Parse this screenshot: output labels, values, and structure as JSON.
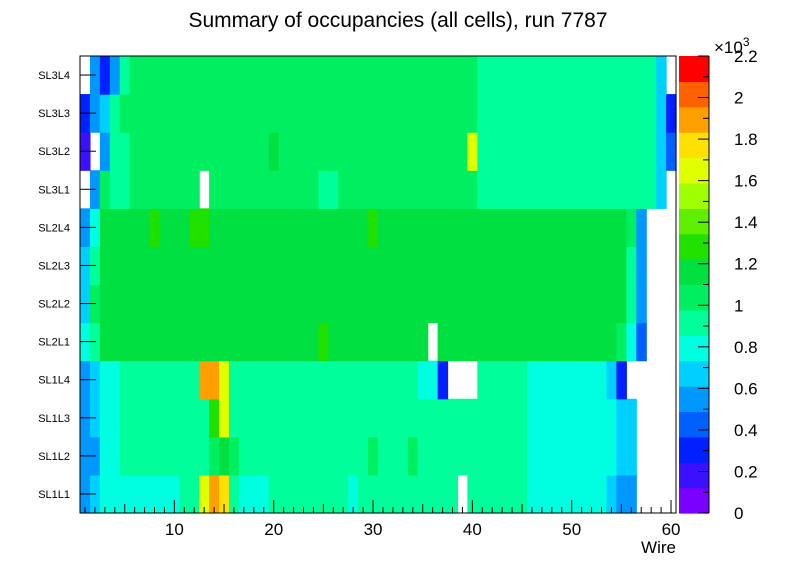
{
  "chart_data": {
    "type": "heatmap",
    "title": "Summary of occupancies (all cells),      run 7787",
    "xlabel": "Wire",
    "ylabel": "",
    "x_range": [
      0.5,
      60.5
    ],
    "x_ticks": [
      10,
      20,
      30,
      40,
      50,
      60
    ],
    "y_categories": [
      "SL1L1",
      "SL1L2",
      "SL1L3",
      "SL1L4",
      "SL2L1",
      "SL2L2",
      "SL2L3",
      "SL2L4",
      "SL3L1",
      "SL3L2",
      "SL3L3",
      "SL3L4"
    ],
    "z_range": [
      0,
      2200
    ],
    "z_ticks": [
      0,
      200,
      400,
      600,
      800,
      1000,
      1200,
      1400,
      1600,
      1800,
      2000,
      2200
    ],
    "z_tick_labels": [
      "0",
      "0.2",
      "0.4",
      "0.6",
      "0.8",
      "1",
      "1.2",
      "1.4",
      "1.6",
      "1.8",
      "2",
      "2.2"
    ],
    "z_multiplier_label": "×10",
    "z_multiplier_exp": "3",
    "palette": [
      "#7a00ff",
      "#3a10ff",
      "#0020ff",
      "#0060ff",
      "#0098ff",
      "#00d0ff",
      "#00ffe0",
      "#00ff9a",
      "#00ef60",
      "#00e040",
      "#20e000",
      "#60ee00",
      "#a0ff00",
      "#e0ff00",
      "#ffe000",
      "#ffa000",
      "#ff6000",
      "#ff0000"
    ],
    "rows": [
      {
        "layer": "SL1L1",
        "values": [
          610,
          700,
          800,
          800,
          800,
          850,
          850,
          850,
          850,
          850,
          900,
          950,
          1600,
          1900,
          1800,
          950,
          850,
          850,
          750,
          900,
          900,
          900,
          900,
          900,
          900,
          950,
          900,
          850,
          900,
          900,
          900,
          900,
          900,
          900,
          900,
          900,
          900,
          900,
          0,
          900,
          900,
          900,
          900,
          900,
          900,
          800,
          750,
          750,
          750,
          750,
          750,
          750,
          750,
          700,
          600,
          500,
          0,
          0,
          0,
          0
        ]
      },
      {
        "layer": "SL1L2",
        "values": [
          500,
          550,
          750,
          850,
          900,
          900,
          900,
          900,
          900,
          900,
          900,
          900,
          900,
          1000,
          1200,
          1000,
          900,
          900,
          900,
          900,
          900,
          900,
          900,
          900,
          900,
          900,
          900,
          900,
          900,
          1000,
          900,
          900,
          900,
          1050,
          900,
          900,
          900,
          900,
          900,
          900,
          900,
          900,
          900,
          900,
          900,
          850,
          850,
          800,
          800,
          800,
          800,
          800,
          800,
          750,
          700,
          650,
          0,
          0,
          0,
          0
        ]
      },
      {
        "layer": "SL1L3",
        "values": [
          600,
          700,
          850,
          850,
          900,
          900,
          900,
          900,
          950,
          950,
          950,
          950,
          900,
          1250,
          1700,
          950,
          900,
          900,
          900,
          900,
          950,
          950,
          950,
          950,
          950,
          950,
          950,
          950,
          950,
          950,
          950,
          950,
          900,
          900,
          900,
          900,
          900,
          900,
          900,
          900,
          900,
          900,
          900,
          900,
          900,
          850,
          800,
          800,
          800,
          800,
          800,
          800,
          800,
          750,
          700,
          700,
          0,
          0,
          0,
          0
        ]
      },
      {
        "layer": "SL1L4",
        "values": [
          600,
          700,
          800,
          850,
          900,
          900,
          900,
          900,
          900,
          900,
          900,
          900,
          1950,
          1900,
          1700,
          900,
          900,
          900,
          900,
          900,
          900,
          900,
          900,
          900,
          900,
          900,
          900,
          900,
          900,
          900,
          900,
          900,
          900,
          900,
          850,
          850,
          300,
          0,
          0,
          0,
          900,
          900,
          900,
          900,
          900,
          850,
          800,
          800,
          800,
          750,
          750,
          750,
          750,
          700,
          300,
          0,
          0,
          0,
          0,
          0
        ]
      },
      {
        "layer": "SL2L1",
        "values": [
          800,
          900,
          1150,
          1200,
          1200,
          1200,
          1200,
          1200,
          1200,
          1200,
          1200,
          1200,
          1200,
          1200,
          1200,
          1200,
          1200,
          1200,
          1200,
          1200,
          1200,
          1200,
          1200,
          1200,
          1300,
          1200,
          1200,
          1200,
          1200,
          1200,
          1200,
          1200,
          1200,
          1200,
          1200,
          0,
          1200,
          1200,
          1200,
          1200,
          1200,
          1200,
          1200,
          1200,
          1200,
          1200,
          1200,
          1200,
          1200,
          1200,
          1200,
          1200,
          1200,
          1200,
          1000,
          800,
          400,
          0,
          0,
          0
        ]
      },
      {
        "layer": "SL2L2",
        "values": [
          700,
          1000,
          1200,
          1200,
          1200,
          1200,
          1200,
          1200,
          1200,
          1200,
          1200,
          1200,
          1200,
          1200,
          1200,
          1200,
          1200,
          1200,
          1200,
          1200,
          1200,
          1200,
          1200,
          1200,
          1200,
          1200,
          1200,
          1200,
          1200,
          1200,
          1200,
          1200,
          1200,
          1200,
          1200,
          1200,
          1200,
          1200,
          1200,
          1200,
          1200,
          1200,
          1200,
          1200,
          1200,
          1200,
          1200,
          1200,
          1200,
          1200,
          1200,
          1200,
          1200,
          1200,
          1100,
          900,
          500,
          0,
          0,
          0
        ]
      },
      {
        "layer": "SL2L3",
        "values": [
          700,
          950,
          1200,
          1200,
          1200,
          1200,
          1200,
          1200,
          1200,
          1200,
          1200,
          1200,
          1200,
          1200,
          1200,
          1200,
          1200,
          1200,
          1200,
          1200,
          1200,
          1200,
          1200,
          1200,
          1200,
          1200,
          1200,
          1200,
          1200,
          1200,
          1200,
          1200,
          1200,
          1200,
          1200,
          1200,
          1200,
          1200,
          1200,
          1200,
          1200,
          1200,
          1200,
          1200,
          1200,
          1200,
          1200,
          1200,
          1200,
          1200,
          1200,
          1200,
          1200,
          1200,
          1100,
          900,
          500,
          0,
          0,
          0
        ]
      },
      {
        "layer": "SL2L4",
        "values": [
          600,
          850,
          1150,
          1200,
          1200,
          1200,
          1200,
          1250,
          1200,
          1200,
          1200,
          1250,
          1250,
          1200,
          1200,
          1200,
          1200,
          1200,
          1200,
          1200,
          1200,
          1200,
          1200,
          1200,
          1200,
          1200,
          1200,
          1200,
          1200,
          1300,
          1200,
          1200,
          1200,
          1200,
          1200,
          1200,
          1200,
          1200,
          1200,
          1200,
          1200,
          1200,
          1200,
          1200,
          1200,
          1200,
          1200,
          1200,
          1200,
          1200,
          1200,
          1200,
          1200,
          1200,
          1150,
          1000,
          500,
          0,
          0,
          0
        ]
      },
      {
        "layer": "SL3L1",
        "values": [
          0,
          550,
          1000,
          900,
          950,
          1000,
          1000,
          1000,
          1000,
          1000,
          1000,
          1000,
          0,
          1000,
          1000,
          1000,
          1000,
          1000,
          1000,
          1000,
          1000,
          1000,
          1000,
          1000,
          950,
          950,
          1000,
          1000,
          1000,
          1000,
          1000,
          1000,
          1000,
          1000,
          1000,
          1000,
          1000,
          1000,
          1000,
          1000,
          950,
          950,
          950,
          950,
          950,
          950,
          950,
          950,
          950,
          950,
          950,
          950,
          950,
          950,
          950,
          950,
          950,
          950,
          700,
          0
        ]
      },
      {
        "layer": "SL3L2",
        "values": [
          200,
          0,
          600,
          900,
          900,
          1000,
          1000,
          1000,
          1000,
          1000,
          1000,
          1000,
          1000,
          1000,
          1000,
          1000,
          1000,
          1000,
          1000,
          1100,
          1000,
          1000,
          1000,
          1000,
          1000,
          1000,
          1000,
          1000,
          1000,
          1000,
          1000,
          1000,
          1000,
          1050,
          1000,
          1000,
          1000,
          1000,
          1000,
          1650,
          950,
          950,
          950,
          950,
          950,
          950,
          950,
          950,
          950,
          950,
          950,
          950,
          950,
          950,
          950,
          950,
          950,
          900,
          700,
          400
        ]
      },
      {
        "layer": "SL3L3",
        "values": [
          300,
          500,
          700,
          950,
          1000,
          1000,
          1000,
          1000,
          1000,
          1000,
          1000,
          1000,
          1000,
          1000,
          1000,
          1000,
          1000,
          1000,
          1000,
          1000,
          1000,
          1000,
          1000,
          1000,
          1000,
          1000,
          1000,
          1000,
          1000,
          1000,
          1000,
          1000,
          1000,
          1000,
          1000,
          1000,
          1000,
          1000,
          1000,
          1000,
          950,
          950,
          950,
          950,
          950,
          950,
          950,
          950,
          950,
          950,
          950,
          950,
          950,
          950,
          950,
          950,
          950,
          900,
          700,
          300
        ]
      },
      {
        "layer": "SL3L4",
        "values": [
          0,
          600,
          300,
          550,
          900,
          1000,
          1000,
          1000,
          1000,
          1000,
          1000,
          1000,
          1000,
          1000,
          1000,
          1000,
          1000,
          1000,
          1000,
          1000,
          1000,
          1000,
          1000,
          1000,
          1000,
          1000,
          1000,
          1000,
          1000,
          1000,
          1000,
          1000,
          1000,
          1000,
          1000,
          1000,
          1000,
          1000,
          1000,
          1000,
          950,
          950,
          950,
          950,
          950,
          950,
          950,
          950,
          950,
          950,
          950,
          950,
          950,
          950,
          950,
          950,
          950,
          900,
          700,
          0
        ]
      }
    ]
  }
}
